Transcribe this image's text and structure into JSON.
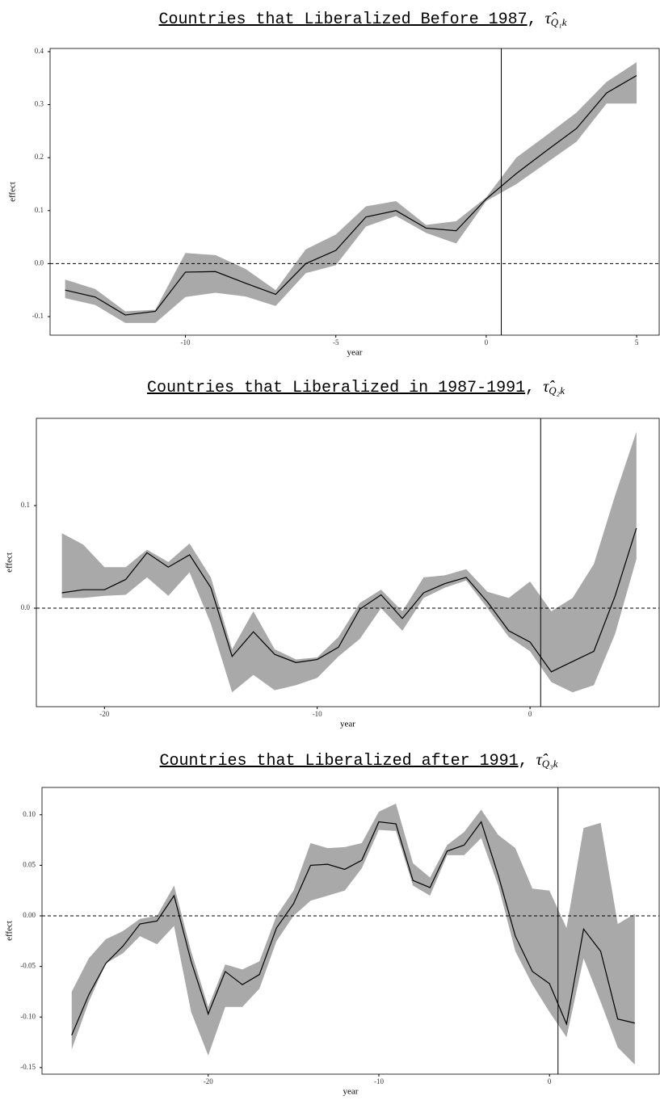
{
  "chart_data": [
    {
      "type": "line",
      "title": "Countries that Liberalized Before 1987",
      "title_separator": ",",
      "title_symbol": "τ̂",
      "title_subscript": "Q₁k",
      "xlabel": "year",
      "ylabel": "effect",
      "x": [
        -14,
        -13,
        -12,
        -11,
        -10,
        -9,
        -8,
        -7,
        -6,
        -5,
        -4,
        -3,
        -2,
        -1,
        0,
        1,
        2,
        3,
        4,
        5
      ],
      "values": [
        -0.05,
        -0.063,
        -0.097,
        -0.09,
        -0.016,
        -0.015,
        -0.037,
        -0.058,
        0.0,
        0.025,
        0.088,
        0.1,
        0.067,
        0.062,
        0.122,
        0.17,
        0.213,
        0.255,
        0.322,
        0.355
      ],
      "lower": [
        -0.065,
        -0.078,
        -0.112,
        -0.112,
        -0.063,
        -0.055,
        -0.062,
        -0.08,
        -0.018,
        -0.003,
        0.07,
        0.09,
        0.058,
        0.038,
        0.118,
        0.15,
        0.19,
        0.23,
        0.302,
        0.302
      ],
      "upper": [
        -0.03,
        -0.048,
        -0.09,
        -0.087,
        0.02,
        0.016,
        -0.01,
        -0.05,
        0.027,
        0.055,
        0.108,
        0.118,
        0.073,
        0.08,
        0.125,
        0.2,
        0.242,
        0.285,
        0.343,
        0.38
      ],
      "color": "#000000",
      "band_color": "#a9a9a9",
      "xlim": [
        -14.5,
        5.75
      ],
      "ylim": [
        -0.135,
        0.406
      ],
      "xticks": [
        -10,
        -5,
        0,
        5
      ],
      "yticks": [
        -0.1,
        {
          "value": 0,
          "label": "0.0"
        },
        0.1,
        0.2,
        0.3,
        0.4
      ],
      "hline": 0,
      "vline": 0.5
    },
    {
      "type": "line",
      "title": "Countries that Liberalized in 1987-1991",
      "title_separator": ",",
      "title_symbol": "τ̂",
      "title_subscript": "Q₂k",
      "xlabel": "year",
      "ylabel": "effect",
      "x": [
        -22,
        -21,
        -20,
        -19,
        -18,
        -17,
        -16,
        -15,
        -14,
        -13,
        -12,
        -11,
        -10,
        -9,
        -8,
        -7,
        -6,
        -5,
        -4,
        -3,
        -2,
        -1,
        0,
        1,
        2,
        3,
        4,
        5
      ],
      "values": [
        0.015,
        0.018,
        0.018,
        0.028,
        0.054,
        0.04,
        0.052,
        0.02,
        -0.047,
        -0.023,
        -0.045,
        -0.053,
        -0.05,
        -0.038,
        -0.001,
        0.013,
        -0.01,
        0.015,
        0.024,
        0.03,
        0.006,
        -0.022,
        -0.033,
        -0.062,
        -0.052,
        -0.042,
        0.012,
        0.078
      ],
      "lower": [
        0.01,
        0.01,
        0.012,
        0.013,
        0.03,
        0.012,
        0.035,
        -0.015,
        -0.082,
        -0.065,
        -0.08,
        -0.075,
        -0.068,
        -0.047,
        -0.03,
        0.0,
        -0.022,
        0.01,
        0.02,
        0.027,
        0.0,
        -0.028,
        -0.042,
        -0.072,
        -0.082,
        -0.075,
        -0.025,
        0.048
      ],
      "upper": [
        0.073,
        0.062,
        0.04,
        0.04,
        0.057,
        0.045,
        0.063,
        0.03,
        -0.04,
        -0.003,
        -0.04,
        -0.05,
        -0.048,
        -0.028,
        0.005,
        0.018,
        -0.003,
        0.03,
        0.032,
        0.038,
        0.016,
        0.01,
        0.026,
        -0.003,
        0.01,
        0.043,
        0.11,
        0.172
      ],
      "color": "#000000",
      "band_color": "#a9a9a9",
      "xlim": [
        -23.2,
        6.07
      ],
      "ylim": [
        -0.096,
        0.185
      ],
      "xticks": [
        -20,
        -10,
        0
      ],
      "yticks": [
        {
          "value": 0,
          "label": "0.0"
        },
        0.1
      ],
      "hline": 0,
      "vline": 0.5
    },
    {
      "type": "line",
      "title": "Countries that Liberalized after 1991",
      "title_separator": ",",
      "title_symbol": "τ̂",
      "title_subscript": "Q₃k",
      "xlabel": "year",
      "ylabel": "effect",
      "x": [
        -28,
        -27,
        -26,
        -25,
        -24,
        -23,
        -22,
        -21,
        -20,
        -19,
        -18,
        -17,
        -16,
        -15,
        -14,
        -13,
        -12,
        -11,
        -10,
        -9,
        -8,
        -7,
        -6,
        -5,
        -4,
        -3,
        -2,
        -1,
        0,
        1,
        2,
        3,
        4,
        5
      ],
      "values": [
        -0.118,
        -0.078,
        -0.047,
        -0.03,
        -0.008,
        -0.005,
        0.02,
        -0.045,
        -0.097,
        -0.055,
        -0.068,
        -0.058,
        -0.012,
        0.012,
        0.05,
        0.051,
        0.046,
        0.055,
        0.093,
        0.091,
        0.035,
        0.028,
        0.064,
        0.07,
        0.093,
        0.04,
        -0.02,
        -0.055,
        -0.067,
        -0.107,
        -0.013,
        -0.035,
        -0.102,
        -0.106
      ],
      "lower": [
        -0.132,
        -0.085,
        -0.047,
        -0.037,
        -0.02,
        -0.028,
        -0.01,
        -0.095,
        -0.138,
        -0.09,
        -0.09,
        -0.072,
        -0.025,
        0.0,
        0.015,
        0.02,
        0.025,
        0.047,
        0.085,
        0.084,
        0.03,
        0.02,
        0.06,
        0.06,
        0.077,
        0.03,
        -0.035,
        -0.068,
        -0.095,
        -0.12,
        -0.042,
        -0.085,
        -0.13,
        -0.147
      ],
      "upper": [
        -0.075,
        -0.042,
        -0.023,
        -0.015,
        -0.003,
        0.0,
        0.03,
        -0.035,
        -0.09,
        -0.048,
        -0.053,
        -0.045,
        0.0,
        0.025,
        0.072,
        0.067,
        0.068,
        0.072,
        0.103,
        0.111,
        0.052,
        0.038,
        0.07,
        0.083,
        0.105,
        0.08,
        0.067,
        0.027,
        0.025,
        -0.012,
        0.087,
        0.092,
        -0.008,
        0.002
      ],
      "color": "#000000",
      "band_color": "#a9a9a9",
      "xlim": [
        -29.74,
        6.43
      ],
      "ylim": [
        -0.1565,
        0.127
      ],
      "xticks": [
        -20,
        -10,
        0
      ],
      "yticks": [
        -0.15,
        {
          "value": -0.1,
          "label": "-0.10"
        },
        -0.05,
        {
          "value": 0,
          "label": "0.00"
        },
        0.05,
        {
          "value": 0.1,
          "label": "0.10"
        }
      ],
      "hline": 0,
      "vline": 0.5
    }
  ]
}
